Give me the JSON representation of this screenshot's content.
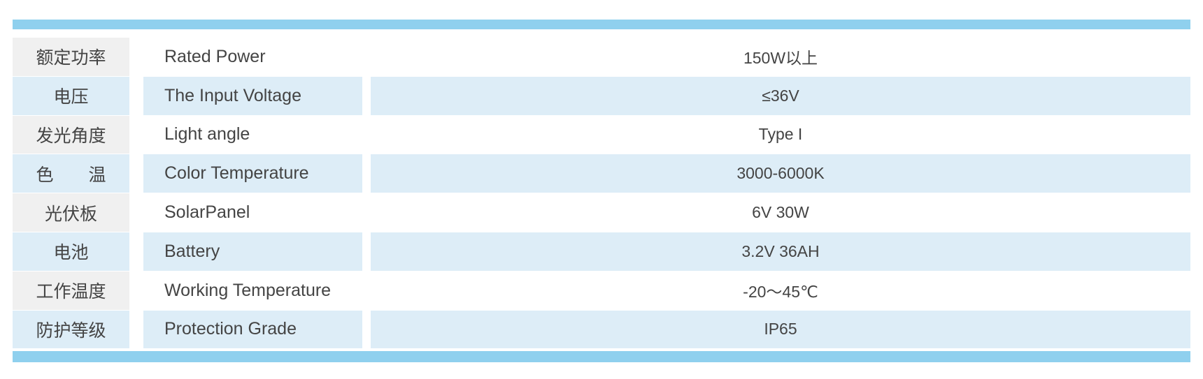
{
  "table": {
    "rows": [
      [
        "额定功率",
        "Rated Power",
        "150W以上"
      ],
      [
        "电压",
        "The Input Voltage",
        "≤36V"
      ],
      [
        "发光角度",
        "Light angle",
        "Type I"
      ],
      [
        "色　　温",
        "Color Temperature",
        "3000-6000K"
      ],
      [
        "光伏板",
        "SolarPanel",
        "6V 30W"
      ],
      [
        "电池",
        "Battery",
        "3.2V 36AH"
      ],
      [
        "工作温度",
        "Working Temperature",
        "-20～45℃"
      ],
      [
        "防护等级",
        "Protection Grade",
        "IP65"
      ]
    ]
  }
}
